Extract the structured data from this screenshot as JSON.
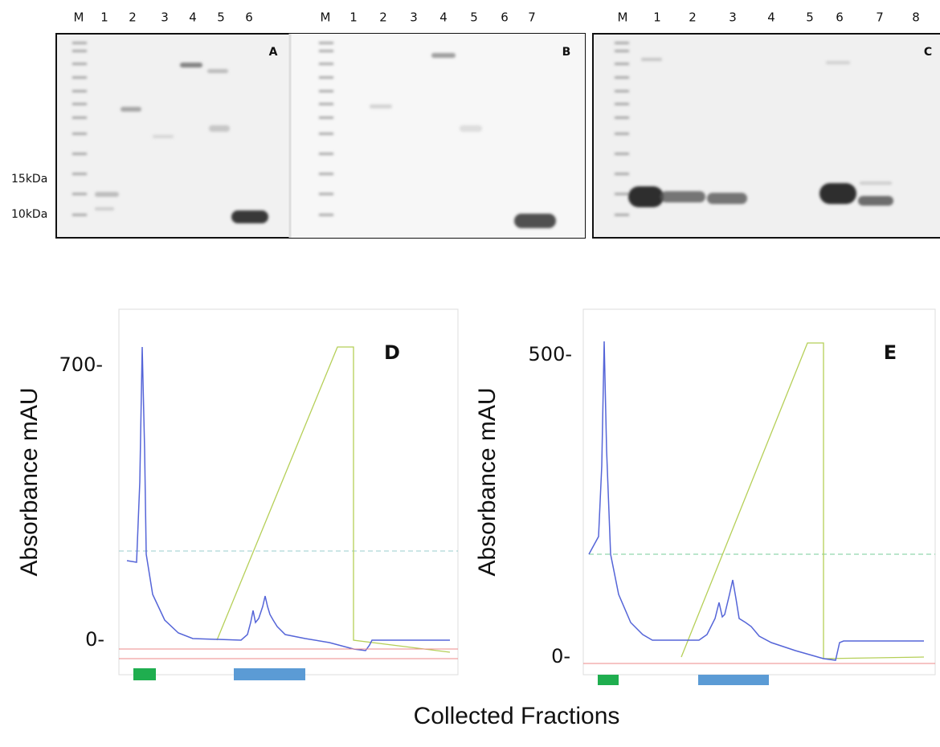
{
  "gels": [
    {
      "panel": "A",
      "lanes": [
        "M",
        "1",
        "2",
        "3",
        "4",
        "5",
        "6"
      ]
    },
    {
      "panel": "B",
      "lanes": [
        "M",
        "1",
        "2",
        "3",
        "4",
        "5",
        "6",
        "7"
      ]
    },
    {
      "panel": "C",
      "lanes": [
        "M",
        "1",
        "2",
        "3",
        "4",
        "5",
        "6",
        "7",
        "8"
      ]
    }
  ],
  "markers": [
    "15kDa",
    "10kDa"
  ],
  "chromatograms": [
    {
      "panel": "D",
      "y_labels": [
        "700-",
        "0-"
      ],
      "y_title": "Absorbance mAU"
    },
    {
      "panel": "E",
      "y_labels": [
        "500-",
        "0-"
      ],
      "y_title": "Absorbance mAU"
    }
  ],
  "x_title": "Collected Fractions"
}
